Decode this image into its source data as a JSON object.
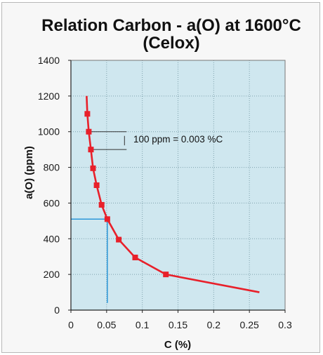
{
  "chart_data": {
    "type": "line",
    "title_lines": [
      "Relation Carbon - a(O) at 1600°C",
      "(Celox)"
    ],
    "xlabel": "C (%)",
    "ylabel": "a(O) (ppm)",
    "xlim": [
      0,
      0.3
    ],
    "ylim": [
      0,
      1400
    ],
    "x_ticks": [
      0,
      0.05,
      0.1,
      0.15,
      0.2,
      0.25,
      0.3
    ],
    "x_tick_labels": [
      "0",
      "0.05",
      "0.1",
      "0.15",
      "0.2",
      "0.25",
      "0.3"
    ],
    "y_ticks": [
      0,
      200,
      400,
      600,
      800,
      1000,
      1200,
      1400
    ],
    "y_tick_labels": [
      "0",
      "200",
      "400",
      "600",
      "800",
      "1000",
      "1200",
      "1400"
    ],
    "grid": true,
    "plot_background": "#cfe7ef",
    "series": [
      {
        "color": "#e8202a",
        "x": [
          0.022,
          0.023,
          0.025,
          0.028,
          0.031,
          0.036,
          0.043,
          0.051,
          0.067,
          0.09,
          0.133,
          0.264
        ],
        "y": [
          1200,
          1100,
          1000,
          900,
          795,
          700,
          590,
          510,
          395,
          295,
          200,
          100
        ],
        "markers": [
          false,
          true,
          true,
          true,
          true,
          true,
          true,
          true,
          true,
          true,
          true,
          false
        ]
      }
    ],
    "annotations": {
      "spacing_text": "100 ppm = 0.003 %C",
      "spacing_upper_y": 1000,
      "spacing_lower_y": 900,
      "spacing_line_x_end": 0.078,
      "reference_point": {
        "x": 0.051,
        "y": 510
      },
      "reference_color": "#1e90d6"
    }
  }
}
